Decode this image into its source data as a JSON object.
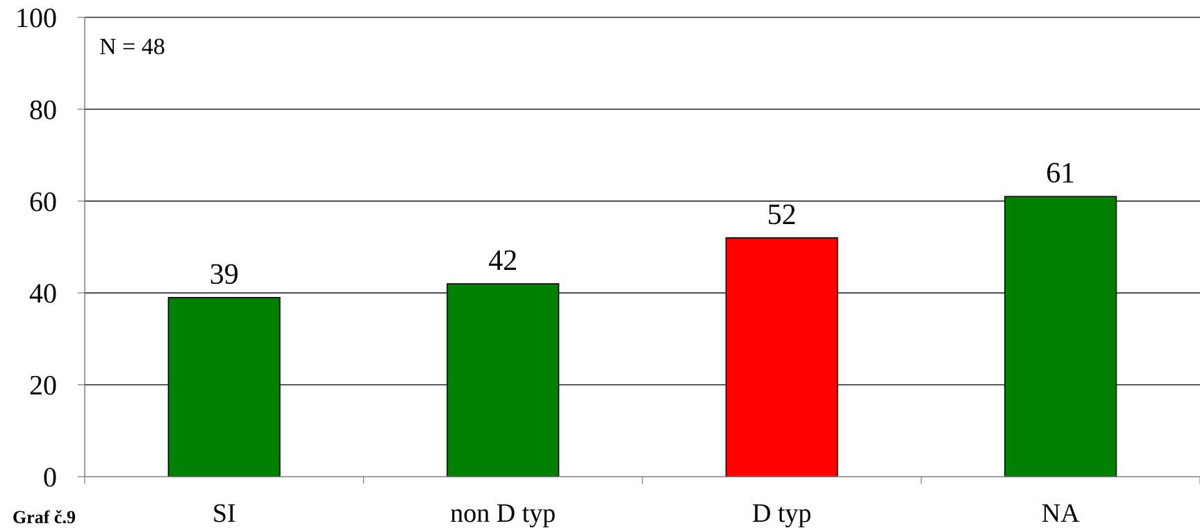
{
  "chart_data": {
    "type": "bar",
    "title": "",
    "xlabel": "",
    "ylabel": "",
    "categories": [
      "SI",
      "non D typ",
      "D typ",
      "NA"
    ],
    "values": [
      39,
      42,
      52,
      61
    ],
    "data_labels": [
      "39",
      "42",
      "52",
      "61"
    ],
    "bar_colors": [
      "#008000",
      "#008000",
      "#ff0000",
      "#008000"
    ],
    "ylim": [
      0,
      100
    ],
    "yticks": [
      0,
      20,
      40,
      60,
      80,
      100
    ],
    "ytick_labels": [
      "0",
      "20",
      "40",
      "60",
      "80",
      "100"
    ],
    "grid": true,
    "annotation": "N = 48",
    "caption": "Graf č.9"
  }
}
